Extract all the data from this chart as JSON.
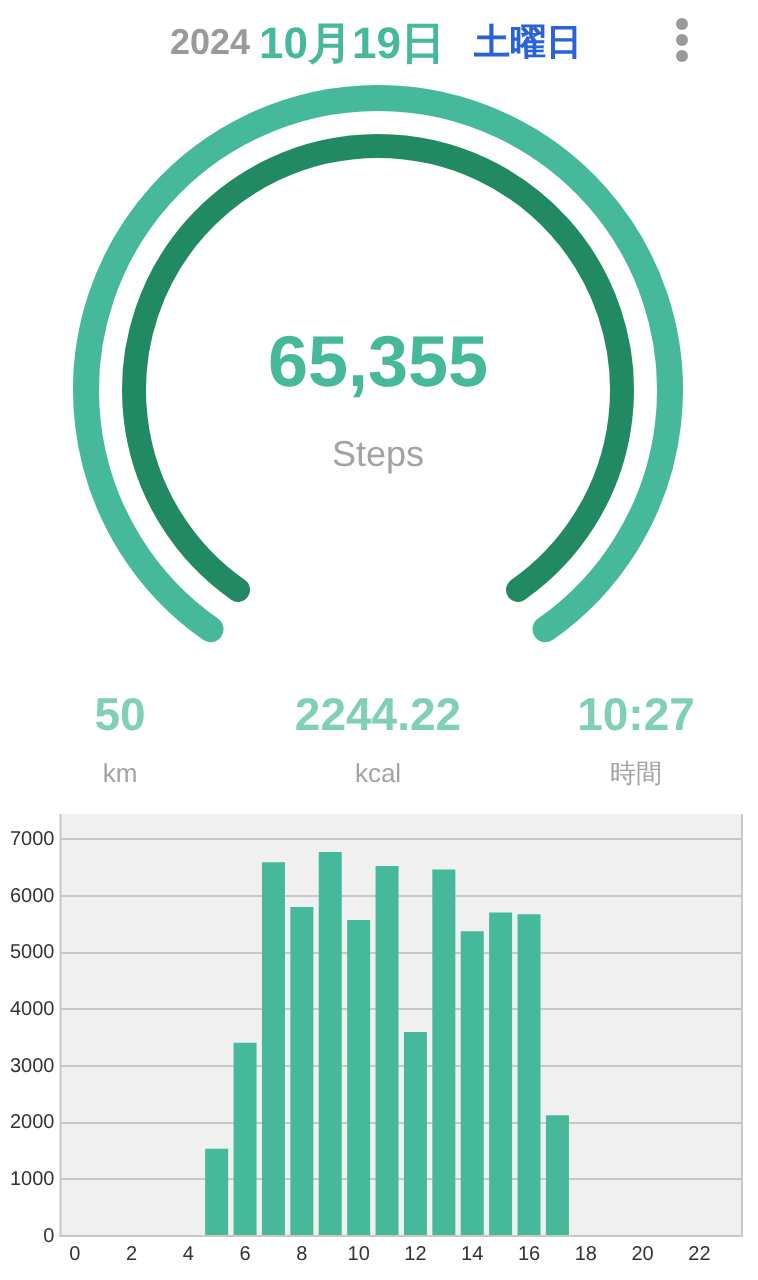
{
  "chart_data": [
    {
      "type": "other",
      "annotations": [
        "2024",
        "10月19日",
        "土曜日",
        "65,355",
        "Steps",
        "50",
        "km",
        "2244.22",
        "kcal",
        "10:27",
        "時間"
      ]
    },
    {
      "type": "bar",
      "categories": [
        "0",
        null,
        "2",
        null,
        "4",
        null,
        "6",
        null,
        "8",
        null,
        "10",
        null,
        "12",
        null,
        "14",
        null,
        "16",
        null,
        "18",
        null,
        "20",
        null,
        "22",
        null
      ],
      "values": [
        0,
        0,
        0,
        0,
        0,
        1540,
        3410,
        6600,
        5810,
        6780,
        5580,
        6530,
        3600,
        6470,
        5380,
        5710,
        5680,
        2130,
        0,
        0,
        0,
        0,
        0,
        0
      ],
      "color": "#45b99a",
      "ylim": [
        0,
        7450
      ],
      "yticks": [
        0,
        1000,
        2000,
        3000,
        4000,
        5000,
        6000,
        7000
      ],
      "grid": "y"
    }
  ]
}
